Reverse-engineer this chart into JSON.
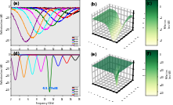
{
  "panel_labels": [
    "(a)",
    "(b)",
    "(c)",
    "(d)",
    "(e)",
    "(f)"
  ],
  "freq_range": [
    2,
    18
  ],
  "thickness_labels_a": [
    "1.5mm",
    "2.0mm",
    "2.5mm",
    "3.0mm",
    "3.5mm",
    "4.0mm",
    "4.5mm",
    "5.0mm"
  ],
  "thickness_labels_d": [
    "1.0mm",
    "1.5mm",
    "2.0mm",
    "2.5mm",
    "3.0mm",
    "3.5mm",
    "4.0mm",
    "4.5mm"
  ],
  "line_colors_a": [
    "black",
    "red",
    "blue",
    "green",
    "magenta",
    "cyan",
    "#ff8800",
    "purple"
  ],
  "line_colors_d": [
    "black",
    "red",
    "blue",
    "green",
    "magenta",
    "cyan",
    "#ff8800",
    "purple"
  ],
  "annotation_text": "-53.79dB",
  "annotation_color": "#0066ff",
  "ylabel_a": "Reflection loss (dB)",
  "xlabel": "Frequency (GHz)",
  "ylim_a": [
    -35,
    5
  ],
  "ylim_d": [
    -60,
    5
  ],
  "xticks": [
    2,
    4,
    6,
    8,
    10,
    12,
    14,
    16,
    18
  ],
  "yticks_a": [
    -30,
    -20,
    -10,
    0
  ],
  "yticks_d": [
    -50,
    -40,
    -30,
    -20,
    -10,
    0
  ],
  "cmap": "YlGn",
  "colorbar_ticks_b": [
    -3,
    -2,
    -1,
    0
  ],
  "colorbar_ticks_f": [
    -50,
    -40,
    -30,
    -20,
    -10,
    0
  ],
  "bg_color": "#e8e8e8"
}
